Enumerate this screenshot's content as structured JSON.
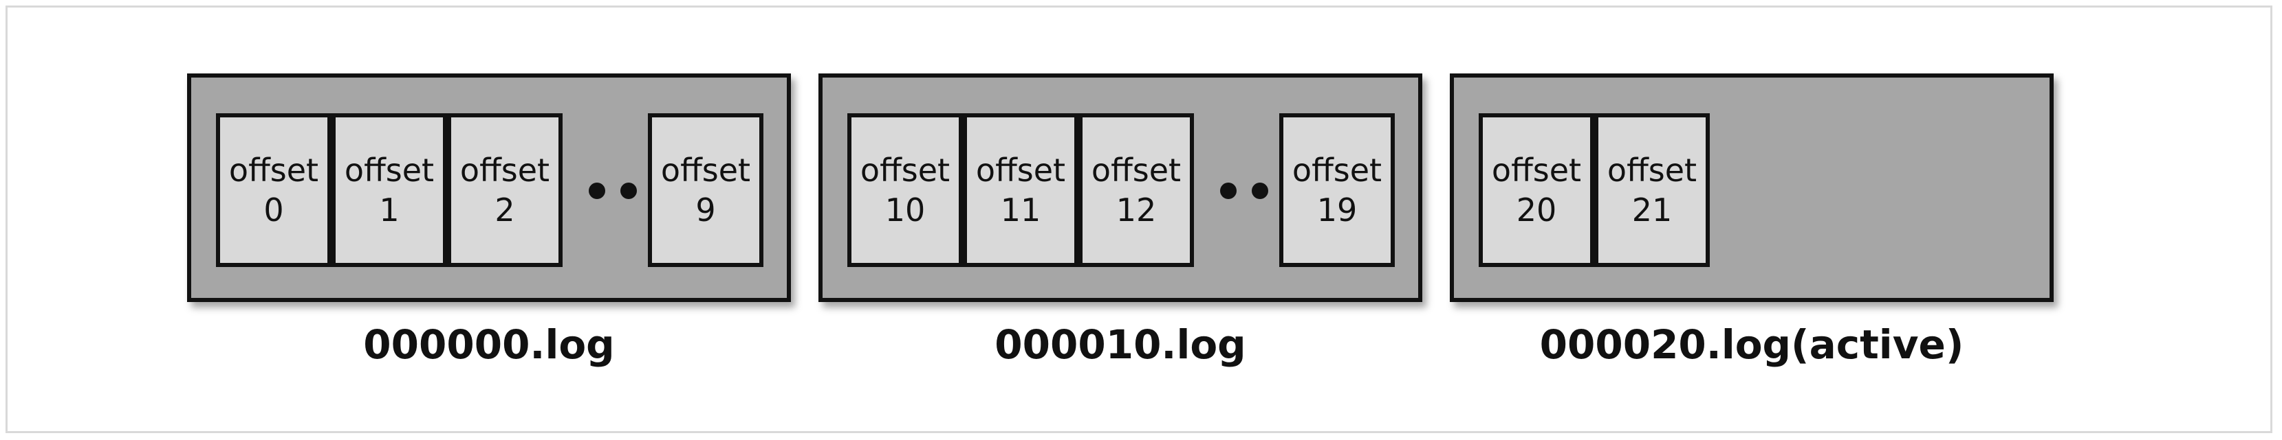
{
  "segments": [
    {
      "file_label": "000000.log",
      "cells": [
        {
          "word": "offset",
          "number": "0"
        },
        {
          "word": "offset",
          "number": "1"
        },
        {
          "word": "offset",
          "number": "2"
        },
        {
          "word": "offset",
          "number": "9"
        }
      ]
    },
    {
      "file_label": "000010.log",
      "cells": [
        {
          "word": "offset",
          "number": "10"
        },
        {
          "word": "offset",
          "number": "11"
        },
        {
          "word": "offset",
          "number": "12"
        },
        {
          "word": "offset",
          "number": "19"
        }
      ]
    },
    {
      "file_label": "000020.log(active)",
      "cells": [
        {
          "word": "offset",
          "number": "20"
        },
        {
          "word": "offset",
          "number": "21"
        }
      ]
    }
  ],
  "colors": {
    "segment_fill": "#a6a6a6",
    "cell_fill": "#d9d9d9",
    "stroke": "#111111"
  }
}
